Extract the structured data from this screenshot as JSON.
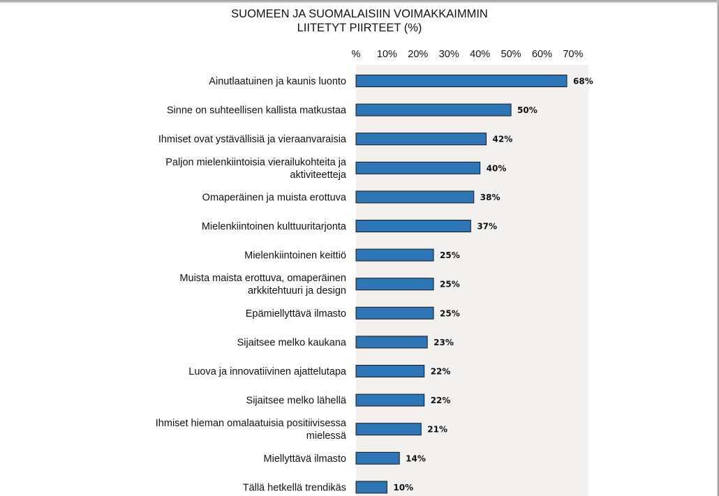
{
  "chart_data": {
    "type": "bar",
    "orientation": "horizontal",
    "title_line1": "SUOMEEN JA SUOMALAISIIN VOIMAKKAIMMIN",
    "title_line2": "LIITETYT PIIRTEET (%)",
    "xlim": [
      0,
      70
    ],
    "tick_values": [
      0,
      10,
      20,
      30,
      40,
      50,
      60,
      70
    ],
    "tick_labels": [
      "%",
      "10%",
      "20%",
      "30%",
      "40%",
      "50%",
      "60%",
      "70%"
    ],
    "categories": [
      [
        "Ainutlaatuinen ja kaunis luonto"
      ],
      [
        "Sinne on suhteellisen kallista matkustaa"
      ],
      [
        "Ihmiset ovat ystävällisiä ja vieraanvaraisia"
      ],
      [
        "Paljon mielenkiintoisia vierailukohteita ja",
        "aktiviteetteja"
      ],
      [
        "Omaperäinen ja muista erottuva"
      ],
      [
        "Mielenkiintoinen kulttuuritarjonta"
      ],
      [
        "Mielenkiintoinen keittiö"
      ],
      [
        "Muista maista erottuva, omaperäinen",
        "arkkitehtuuri ja design"
      ],
      [
        "Epämiellyttävä ilmasto"
      ],
      [
        "Sijaitsee melko kaukana"
      ],
      [
        "Luova ja innovatiivinen ajattelutapa"
      ],
      [
        "Sijaitsee melko lähellä"
      ],
      [
        "Ihmiset hieman omalaatuisia positiivisessa",
        "mielessä"
      ],
      [
        "Miellyttävä ilmasto"
      ],
      [
        "Tällä hetkellä trendikäs"
      ]
    ],
    "values": [
      68,
      50,
      42,
      40,
      38,
      37,
      25,
      25,
      25,
      23,
      22,
      22,
      21,
      14,
      10
    ],
    "value_labels": [
      "68%",
      "50%",
      "42%",
      "40%",
      "38%",
      "37%",
      "25%",
      "25%",
      "25%",
      "23%",
      "22%",
      "22%",
      "21%",
      "14%",
      "10%"
    ],
    "bar_color": "#2e75b6",
    "plot_background": "#f2f1f0",
    "grid": false,
    "legend": "none"
  }
}
